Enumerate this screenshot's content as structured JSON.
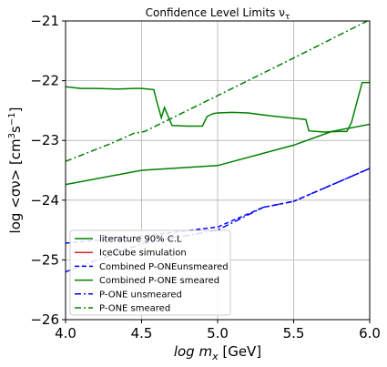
{
  "chart_data": {
    "type": "line",
    "title": "Confidence Level Limits ν",
    "title_subscript": "τ",
    "xlabel": "log m",
    "xlabel_subscript": "x",
    "xlabel_unit": " [GeV]",
    "ylabel": "log <σν>  [cm",
    "ylabel_sup1": "3",
    "ylabel_mid": "s",
    "ylabel_sup2": "−1",
    "ylabel_end": "]",
    "xlim": [
      4.0,
      6.0
    ],
    "ylim": [
      -26,
      -21
    ],
    "xticks": [
      4.0,
      4.5,
      5.0,
      5.5,
      6.0
    ],
    "xtick_labels": [
      "4.0",
      "4.5",
      "5.0",
      "5.5",
      "6.0"
    ],
    "yticks": [
      -26,
      -25,
      -24,
      -23,
      -22,
      -21
    ],
    "ytick_labels": [
      "−26",
      "−25",
      "−24",
      "−23",
      "−22",
      "−21"
    ],
    "grid": true,
    "legend_position": "lower-left",
    "series": [
      {
        "name": "literature 90% C.L",
        "color": "#008000",
        "dash": "solid",
        "x": [
          4.0,
          4.1,
          4.2,
          4.35,
          4.45,
          4.5,
          4.58,
          4.6,
          4.63,
          4.65,
          4.7,
          4.8,
          4.9,
          4.93,
          4.97,
          5.0,
          5.1,
          5.2,
          5.35,
          5.5,
          5.58,
          5.6,
          5.7,
          5.8,
          5.85,
          5.88,
          5.95,
          6.0
        ],
        "y": [
          -22.1,
          -22.13,
          -22.13,
          -22.14,
          -22.13,
          -22.13,
          -22.15,
          -22.35,
          -22.62,
          -22.45,
          -22.75,
          -22.76,
          -22.76,
          -22.6,
          -22.55,
          -22.54,
          -22.53,
          -22.54,
          -22.59,
          -22.63,
          -22.65,
          -22.84,
          -22.86,
          -22.85,
          -22.85,
          -22.7,
          -22.03,
          -22.03
        ]
      },
      {
        "name": "IceCube simulation",
        "color": "#d62728",
        "dash": "solid",
        "x": [],
        "y": []
      },
      {
        "name": "Combined P-ONEunsmeared",
        "color": "#0000ff",
        "dash": "dashed",
        "x": [
          4.0,
          4.5,
          5.0,
          5.3,
          5.5,
          6.0
        ],
        "y": [
          -24.72,
          -24.6,
          -24.45,
          -24.12,
          -24.02,
          -23.47
        ]
      },
      {
        "name": "Combined P-ONE smeared",
        "color": "#008000",
        "dash": "solid",
        "x": [
          4.0,
          4.5,
          5.0,
          5.5,
          5.75,
          6.0
        ],
        "y": [
          -23.74,
          -23.5,
          -23.42,
          -23.08,
          -22.85,
          -22.73
        ]
      },
      {
        "name": "P-ONE unsmeared",
        "color": "#0000ff",
        "dash": "dashdot",
        "x": [
          4.0,
          4.5,
          5.0,
          5.3,
          5.5,
          6.0
        ],
        "y": [
          -25.2,
          -24.73,
          -24.5,
          -24.12,
          -24.02,
          -23.47
        ]
      },
      {
        "name": "P-ONE smeared",
        "color": "#008000",
        "dash": "dashdot",
        "x": [
          4.0,
          4.3,
          4.45,
          4.52,
          5.0,
          5.5,
          6.0
        ],
        "y": [
          -23.35,
          -23.05,
          -22.88,
          -22.85,
          -22.25,
          -21.62,
          -20.98
        ]
      }
    ]
  }
}
